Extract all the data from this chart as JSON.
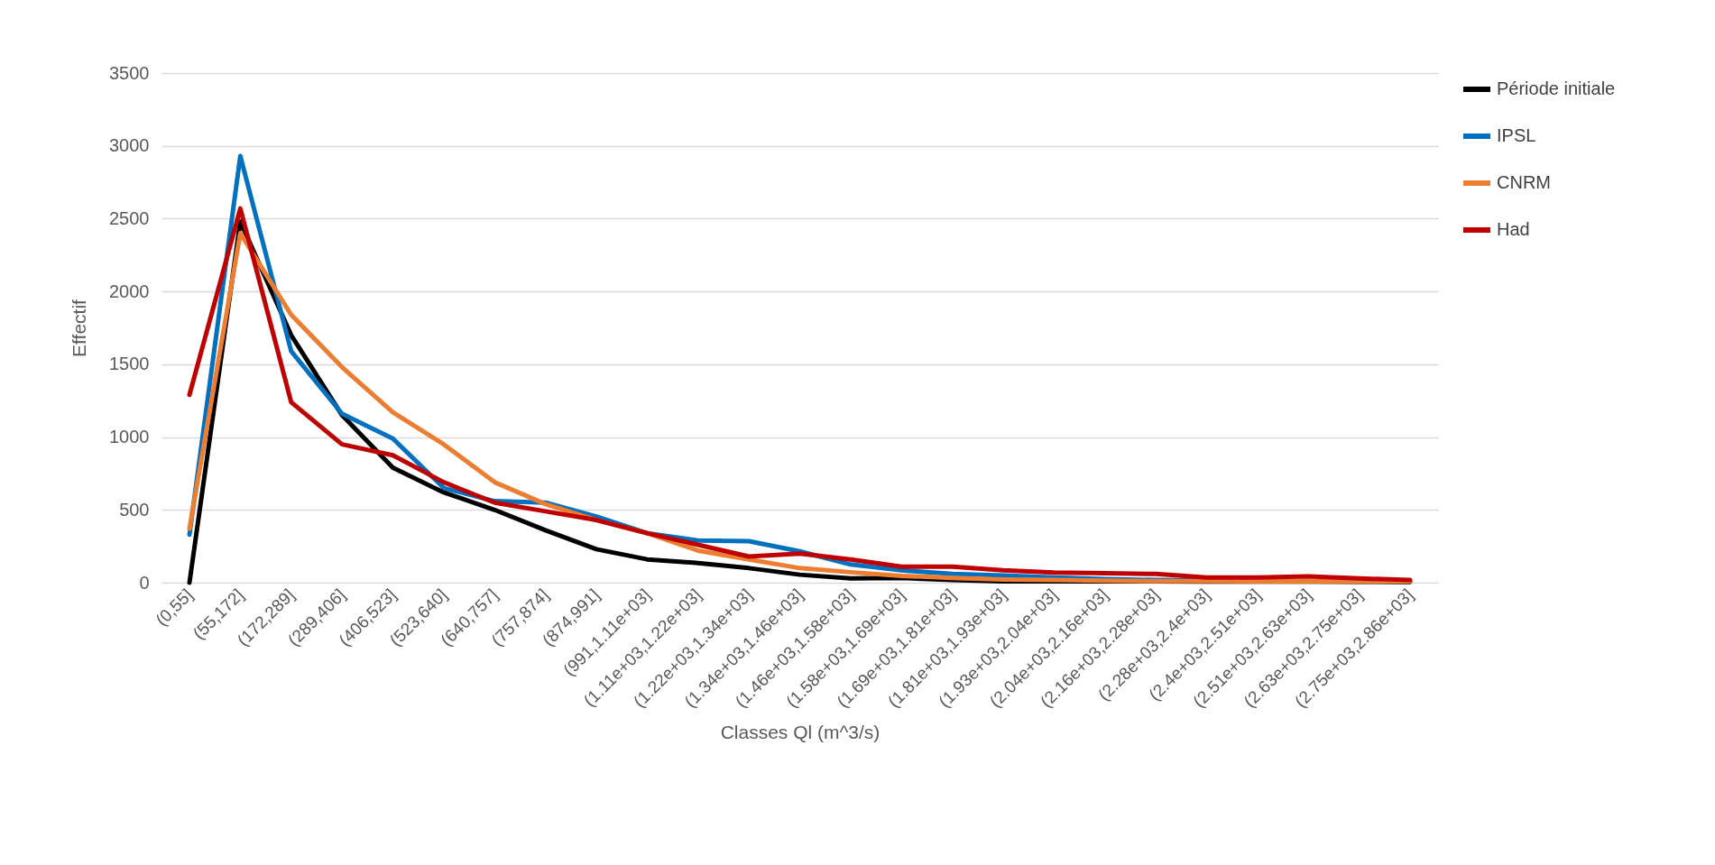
{
  "chart_data": {
    "type": "line",
    "xlabel": "Classes Ql (m^3/s)",
    "ylabel": "Effectif",
    "categories": [
      "(0,55]",
      "(55,172]",
      "(172,289]",
      "(289,406]",
      "(406,523]",
      "(523,640]",
      "(640,757]",
      "(757,874]",
      "(874,991]",
      "(991,1.11e+03]",
      "(1.11e+03,1.22e+03]",
      "(1.22e+03,1.34e+03]",
      "(1.34e+03,1.46e+03]",
      "(1.46e+03,1.58e+03]",
      "(1.58e+03,1.69e+03]",
      "(1.69e+03,1.81e+03]",
      "(1.81e+03,1.93e+03]",
      "(1.93e+03,2.04e+03]",
      "(2.04e+03,2.16e+03]",
      "(2.16e+03,2.28e+03]",
      "(2.28e+03,2.4e+03]",
      "(2.4e+03,2.51e+03]",
      "(2.51e+03,2.63e+03]",
      "(2.63e+03,2.75e+03]",
      "(2.75e+03,2.86e+03]"
    ],
    "series": [
      {
        "name": "Période initiale",
        "color": "#000000",
        "values": [
          0,
          2480,
          1700,
          1150,
          790,
          620,
          500,
          360,
          230,
          160,
          135,
          100,
          55,
          30,
          33,
          18,
          10,
          10,
          10,
          10,
          8,
          8,
          8,
          6,
          5
        ]
      },
      {
        "name": "IPSL",
        "color": "#0070c0",
        "values": [
          330,
          2930,
          1590,
          1160,
          990,
          650,
          560,
          550,
          455,
          340,
          290,
          285,
          215,
          125,
          85,
          60,
          50,
          36,
          25,
          18,
          15,
          null,
          null,
          null,
          null
        ]
      },
      {
        "name": "CNRM",
        "color": "#ed7d31",
        "values": [
          370,
          2400,
          1840,
          1480,
          1170,
          950,
          690,
          540,
          430,
          340,
          220,
          160,
          100,
          72,
          47,
          33,
          22,
          18,
          14,
          11,
          11,
          10,
          10,
          10,
          10
        ]
      },
      {
        "name": "Had",
        "color": "#c00000",
        "values": [
          1290,
          2570,
          1240,
          950,
          875,
          690,
          550,
          490,
          430,
          340,
          260,
          180,
          200,
          160,
          110,
          110,
          85,
          70,
          65,
          60,
          36,
          36,
          43,
          29,
          18
        ]
      }
    ],
    "ylim": [
      0,
      3500
    ],
    "yticks": [
      0,
      500,
      1000,
      1500,
      2000,
      2500,
      3000,
      3500
    ],
    "grid": "y",
    "legend": "right",
    "marker": "none",
    "line_style": "solid"
  }
}
